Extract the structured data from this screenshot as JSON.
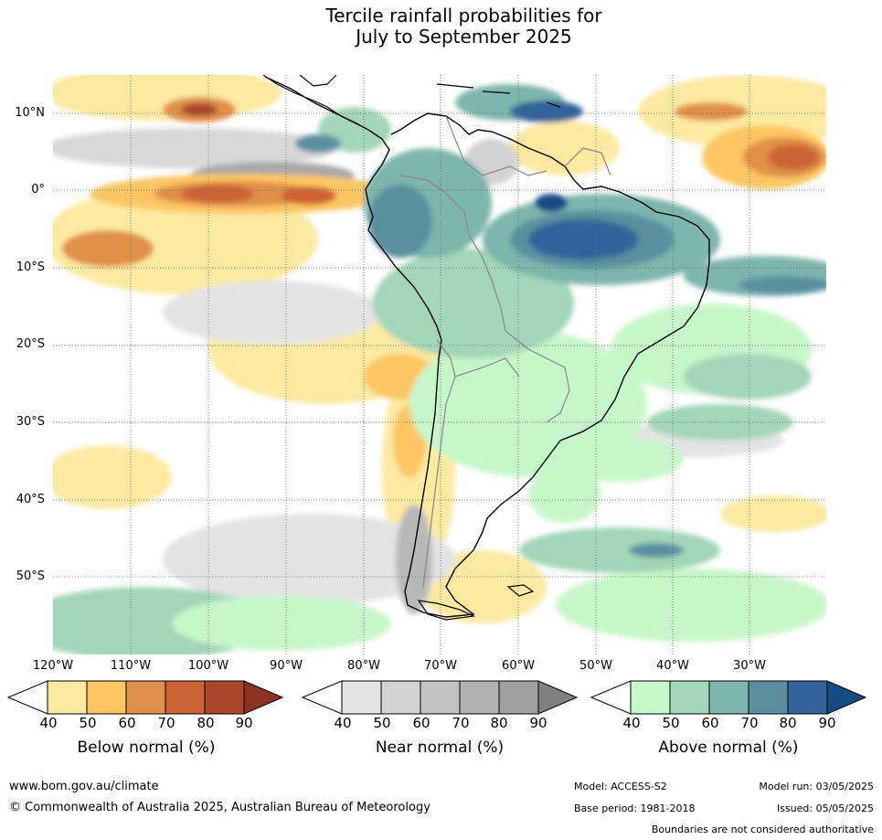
{
  "title": {
    "line1": "Tercile rainfall probabilities for",
    "line2": "July to September 2025"
  },
  "map": {
    "lat_labels": [
      "10°N",
      "0°",
      "10°S",
      "20°S",
      "30°S",
      "40°S",
      "50°S"
    ],
    "lon_labels": [
      "120°W",
      "110°W",
      "100°W",
      "90°W",
      "80°W",
      "70°W",
      "60°W",
      "50°W",
      "40°W",
      "30°W"
    ]
  },
  "legend": {
    "below": {
      "title": "Below normal (%)",
      "ticks": [
        "40",
        "50",
        "60",
        "70",
        "80",
        "90"
      ],
      "colors": [
        "#ffffff",
        "#fde9a0",
        "#fdc663",
        "#e0904a",
        "#cc6334",
        "#a8472a",
        "#8a3322"
      ]
    },
    "near": {
      "title": "Near normal (%)",
      "ticks": [
        "40",
        "50",
        "60",
        "70",
        "80",
        "90"
      ],
      "colors": [
        "#ffffff",
        "#e3e3e3",
        "#d2d2d2",
        "#c2c2c2",
        "#b2b2b2",
        "#a0a0a0",
        "#808080"
      ]
    },
    "above": {
      "title": "Above normal (%)",
      "ticks": [
        "40",
        "50",
        "60",
        "70",
        "80",
        "90"
      ],
      "colors": [
        "#ffffff",
        "#c6f7c9",
        "#a3d6b8",
        "#7eb5ac",
        "#5a8fa0",
        "#33639a",
        "#164c85"
      ]
    }
  },
  "footer": {
    "website": "www.bom.gov.au/climate",
    "copyright": "© Commonwealth of Australia 2025, Australian Bureau of Meteorology",
    "model": "Model: ACCESS-S2",
    "base_period": "Base period: 1981-2018",
    "model_run": "Model run: 03/05/2025",
    "issued": "Issued: 05/05/2025",
    "disclaimer": "Boundaries are not considered authoritative"
  }
}
